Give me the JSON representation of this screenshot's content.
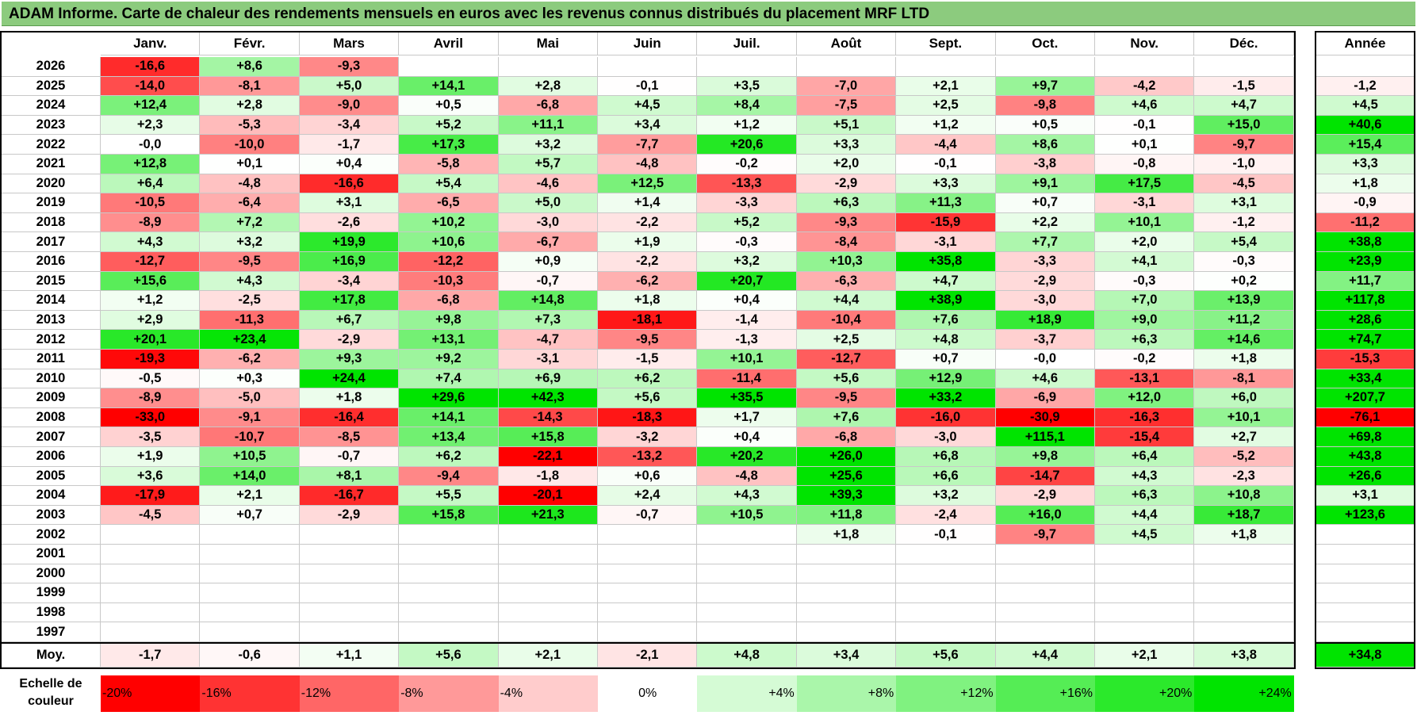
{
  "title": "ADAM Informe. Carte de chaleur des rendements mensuels en euros avec les revenus connus distribués du placement MRF LTD",
  "colors": {
    "title_bg": "#8ccb7e",
    "neg_max": "#ff0000",
    "pos_max": "#00e400"
  },
  "scale_label": "Echelle de couleur",
  "chart_data": {
    "type": "heatmap",
    "columns": [
      "Janv.",
      "Févr.",
      "Mars",
      "Avril",
      "Mai",
      "Juin",
      "Juil.",
      "Août",
      "Sept.",
      "Oct.",
      "Nov.",
      "Déc."
    ],
    "year_header": "Année",
    "rows": [
      {
        "year": "2026",
        "values": [
          "-16,6",
          "+8,6",
          "-9,3",
          "",
          "",
          "",
          "",
          "",
          "",
          "",
          "",
          ""
        ],
        "annual": ""
      },
      {
        "year": "2025",
        "values": [
          "-14,0",
          "-8,1",
          "+5,0",
          "+14,1",
          "+2,8",
          "-0,1",
          "+3,5",
          "-7,0",
          "+2,1",
          "+9,7",
          "-4,2",
          "-1,5"
        ],
        "annual": "-1,2"
      },
      {
        "year": "2024",
        "values": [
          "+12,4",
          "+2,8",
          "-9,0",
          "+0,5",
          "-6,8",
          "+4,5",
          "+8,4",
          "-7,5",
          "+2,5",
          "-9,8",
          "+4,6",
          "+4,7"
        ],
        "annual": "+4,5"
      },
      {
        "year": "2023",
        "values": [
          "+2,3",
          "-5,3",
          "-3,4",
          "+5,2",
          "+11,1",
          "+3,4",
          "+1,2",
          "+5,1",
          "+1,2",
          "+0,5",
          "-0,1",
          "+15,0"
        ],
        "annual": "+40,6"
      },
      {
        "year": "2022",
        "values": [
          "-0,0",
          "-10,0",
          "-1,7",
          "+17,3",
          "+3,2",
          "-7,7",
          "+20,6",
          "+3,3",
          "-4,4",
          "+8,6",
          "+0,1",
          "-9,7"
        ],
        "annual": "+15,4"
      },
      {
        "year": "2021",
        "values": [
          "+12,8",
          "+0,1",
          "+0,4",
          "-5,8",
          "+5,7",
          "-4,8",
          "-0,2",
          "+2,0",
          "-0,1",
          "-3,8",
          "-0,8",
          "-1,0"
        ],
        "annual": "+3,3"
      },
      {
        "year": "2020",
        "values": [
          "+6,4",
          "-4,8",
          "-16,6",
          "+5,4",
          "-4,6",
          "+12,5",
          "-13,3",
          "-2,9",
          "+3,3",
          "+9,1",
          "+17,5",
          "-4,5"
        ],
        "annual": "+1,8"
      },
      {
        "year": "2019",
        "values": [
          "-10,5",
          "-6,4",
          "+3,1",
          "-6,5",
          "+5,0",
          "+1,4",
          "-3,3",
          "+6,3",
          "+11,3",
          "+0,7",
          "-3,1",
          "+3,1"
        ],
        "annual": "-0,9"
      },
      {
        "year": "2018",
        "values": [
          "-8,9",
          "+7,2",
          "-2,6",
          "+10,2",
          "-3,0",
          "-2,2",
          "+5,2",
          "-9,3",
          "-15,9",
          "+2,2",
          "+10,1",
          "-1,2"
        ],
        "annual": "-11,2"
      },
      {
        "year": "2017",
        "values": [
          "+4,3",
          "+3,2",
          "+19,9",
          "+10,6",
          "-6,7",
          "+1,9",
          "-0,3",
          "-8,4",
          "-3,1",
          "+7,7",
          "+2,0",
          "+5,4"
        ],
        "annual": "+38,8"
      },
      {
        "year": "2016",
        "values": [
          "-12,7",
          "-9,5",
          "+16,9",
          "-12,2",
          "+0,9",
          "-2,2",
          "+3,2",
          "+10,3",
          "+35,8",
          "-3,3",
          "+4,1",
          "-0,3"
        ],
        "annual": "+23,9"
      },
      {
        "year": "2015",
        "values": [
          "+15,6",
          "+4,3",
          "-3,4",
          "-10,3",
          "-0,7",
          "-6,2",
          "+20,7",
          "-6,3",
          "+4,7",
          "-2,9",
          "-0,3",
          "+0,2"
        ],
        "annual": "+11,7"
      },
      {
        "year": "2014",
        "values": [
          "+1,2",
          "-2,5",
          "+17,8",
          "-6,8",
          "+14,8",
          "+1,8",
          "+0,4",
          "+4,4",
          "+38,9",
          "-3,0",
          "+7,0",
          "+13,9"
        ],
        "annual": "+117,8"
      },
      {
        "year": "2013",
        "values": [
          "+2,9",
          "-11,3",
          "+6,7",
          "+9,8",
          "+7,3",
          "-18,1",
          "-1,4",
          "-10,4",
          "+7,6",
          "+18,9",
          "+9,0",
          "+11,2"
        ],
        "annual": "+28,6"
      },
      {
        "year": "2012",
        "values": [
          "+20,1",
          "+23,4",
          "-2,9",
          "+13,1",
          "-4,7",
          "-9,5",
          "-1,3",
          "+2,5",
          "+4,8",
          "-3,7",
          "+6,3",
          "+14,6"
        ],
        "annual": "+74,7"
      },
      {
        "year": "2011",
        "values": [
          "-19,3",
          "-6,2",
          "+9,3",
          "+9,2",
          "-3,1",
          "-1,5",
          "+10,1",
          "-12,7",
          "+0,7",
          "-0,0",
          "-0,2",
          "+1,8"
        ],
        "annual": "-15,3"
      },
      {
        "year": "2010",
        "values": [
          "-0,5",
          "+0,3",
          "+24,4",
          "+7,4",
          "+6,9",
          "+6,2",
          "-11,4",
          "+5,6",
          "+12,9",
          "+4,6",
          "-13,1",
          "-8,1"
        ],
        "annual": "+33,4"
      },
      {
        "year": "2009",
        "values": [
          "-8,9",
          "-5,0",
          "+1,8",
          "+29,6",
          "+42,3",
          "+5,6",
          "+35,5",
          "-9,5",
          "+33,2",
          "-6,9",
          "+12,0",
          "+6,0"
        ],
        "annual": "+207,7"
      },
      {
        "year": "2008",
        "values": [
          "-33,0",
          "-9,1",
          "-16,4",
          "+14,1",
          "-14,3",
          "-18,3",
          "+1,7",
          "+7,6",
          "-16,0",
          "-30,9",
          "-16,3",
          "+10,1"
        ],
        "annual": "-76,1"
      },
      {
        "year": "2007",
        "values": [
          "-3,5",
          "-10,7",
          "-8,5",
          "+13,4",
          "+15,8",
          "-3,2",
          "+0,4",
          "-6,8",
          "-3,0",
          "+115,1",
          "-15,4",
          "+2,7"
        ],
        "annual": "+69,8"
      },
      {
        "year": "2006",
        "values": [
          "+1,9",
          "+10,5",
          "-0,7",
          "+6,2",
          "-22,1",
          "-13,2",
          "+20,2",
          "+26,0",
          "+6,8",
          "+9,8",
          "+6,4",
          "-5,2"
        ],
        "annual": "+43,8"
      },
      {
        "year": "2005",
        "values": [
          "+3,6",
          "+14,0",
          "+8,1",
          "-9,4",
          "-1,8",
          "+0,6",
          "-4,8",
          "+25,6",
          "+6,6",
          "-14,7",
          "+4,3",
          "-2,3"
        ],
        "annual": "+26,6"
      },
      {
        "year": "2004",
        "values": [
          "-17,9",
          "+2,1",
          "-16,7",
          "+5,5",
          "-20,1",
          "+2,4",
          "+4,3",
          "+39,3",
          "+3,2",
          "-2,9",
          "+6,3",
          "+10,8"
        ],
        "annual": "+3,1"
      },
      {
        "year": "2003",
        "values": [
          "-4,5",
          "+0,7",
          "-2,9",
          "+15,8",
          "+21,3",
          "-0,7",
          "+10,5",
          "+11,8",
          "-2,4",
          "+16,0",
          "+4,4",
          "+18,7"
        ],
        "annual": "+123,6"
      },
      {
        "year": "2002",
        "values": [
          "",
          "",
          "",
          "",
          "",
          "",
          "",
          "+1,8",
          "-0,1",
          "-9,7",
          "+4,5",
          "+1,8"
        ],
        "annual": ""
      },
      {
        "year": "2001",
        "values": [
          "",
          "",
          "",
          "",
          "",
          "",
          "",
          "",
          "",
          "",
          "",
          ""
        ],
        "annual": ""
      },
      {
        "year": "2000",
        "values": [
          "",
          "",
          "",
          "",
          "",
          "",
          "",
          "",
          "",
          "",
          "",
          ""
        ],
        "annual": ""
      },
      {
        "year": "1999",
        "values": [
          "",
          "",
          "",
          "",
          "",
          "",
          "",
          "",
          "",
          "",
          "",
          ""
        ],
        "annual": ""
      },
      {
        "year": "1998",
        "values": [
          "",
          "",
          "",
          "",
          "",
          "",
          "",
          "",
          "",
          "",
          "",
          ""
        ],
        "annual": ""
      },
      {
        "year": "1997",
        "values": [
          "",
          "",
          "",
          "",
          "",
          "",
          "",
          "",
          "",
          "",
          "",
          ""
        ],
        "annual": ""
      }
    ],
    "average": {
      "label": "Moy.",
      "values": [
        "-1,7",
        "-0,6",
        "+1,1",
        "+5,6",
        "+2,1",
        "-2,1",
        "+4,8",
        "+3,4",
        "+5,6",
        "+4,4",
        "+2,1",
        "+3,8"
      ],
      "annual": "+34,8"
    },
    "color_scale": {
      "labels": [
        "-20%",
        "-16%",
        "-12%",
        "-8%",
        "-4%",
        "0%",
        "+4%",
        "+8%",
        "+12%",
        "+16%",
        "+20%",
        "+24%"
      ],
      "values": [
        -20,
        -16,
        -12,
        -8,
        -4,
        0,
        4,
        8,
        12,
        16,
        20,
        24
      ]
    }
  }
}
